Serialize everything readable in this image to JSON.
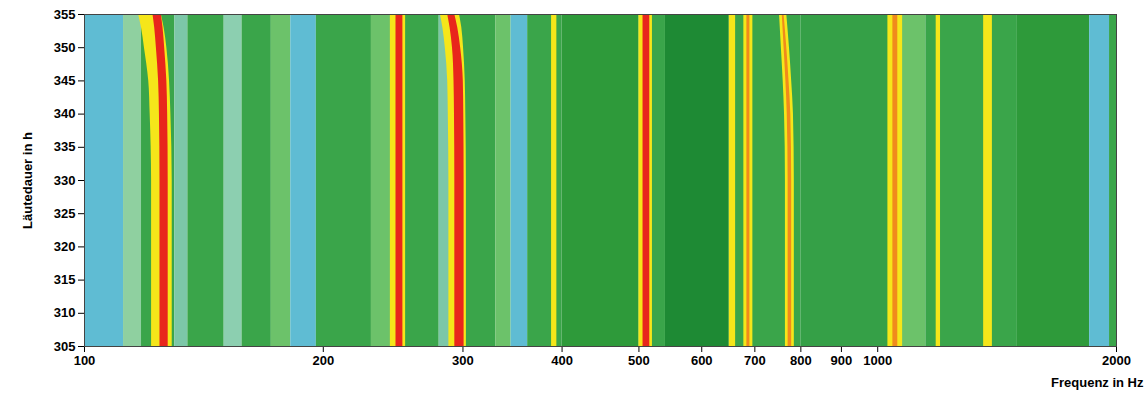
{
  "chart_data": {
    "type": "heatmap",
    "x_label": "Frequenz in Hz",
    "y_label": "Läutedauer in h",
    "log": "x",
    "xlim": [
      100,
      2000
    ],
    "xticks": [
      100,
      200,
      300,
      400,
      500,
      600,
      700,
      800,
      900,
      1000,
      2000
    ],
    "ylim": [
      305,
      355
    ],
    "yticks": [
      305,
      310,
      315,
      320,
      325,
      330,
      335,
      340,
      345,
      350,
      355
    ],
    "bands": [
      {
        "f0": 100,
        "f1": 112,
        "color": "#5fbcd3"
      },
      {
        "f0": 112,
        "f1": 118,
        "color": "#8fd0a0"
      },
      {
        "f0": 118,
        "f1": 130,
        "color": "#3aa54a"
      },
      {
        "f0": 130,
        "f1": 135,
        "color": "#7cc7a8"
      },
      {
        "f0": 135,
        "f1": 150,
        "color": "#3aa54a"
      },
      {
        "f0": 150,
        "f1": 158,
        "color": "#8ccfb0"
      },
      {
        "f0": 158,
        "f1": 172,
        "color": "#3aa54a"
      },
      {
        "f0": 172,
        "f1": 182,
        "color": "#6cc26a"
      },
      {
        "f0": 182,
        "f1": 196,
        "color": "#5fbcd3"
      },
      {
        "f0": 196,
        "f1": 230,
        "color": "#3aa54a"
      },
      {
        "f0": 230,
        "f1": 245,
        "color": "#6cc26a"
      },
      {
        "f0": 245,
        "f1": 280,
        "color": "#3aa54a"
      },
      {
        "f0": 280,
        "f1": 290,
        "color": "#7cc7a8"
      },
      {
        "f0": 290,
        "f1": 330,
        "color": "#3aa54a"
      },
      {
        "f0": 330,
        "f1": 345,
        "color": "#6cc26a"
      },
      {
        "f0": 345,
        "f1": 362,
        "color": "#5fbcd3"
      },
      {
        "f0": 362,
        "f1": 400,
        "color": "#3aa54a"
      },
      {
        "f0": 400,
        "f1": 500,
        "color": "#2e9a3a"
      },
      {
        "f0": 500,
        "f1": 540,
        "color": "#3aa54a"
      },
      {
        "f0": 540,
        "f1": 650,
        "color": "#1e8a34"
      },
      {
        "f0": 650,
        "f1": 800,
        "color": "#3aa54a"
      },
      {
        "f0": 800,
        "f1": 1050,
        "color": "#35a047"
      },
      {
        "f0": 1050,
        "f1": 1150,
        "color": "#6cc26a"
      },
      {
        "f0": 1150,
        "f1": 1500,
        "color": "#3aa54a"
      },
      {
        "f0": 1500,
        "f1": 1850,
        "color": "#2e9a3a"
      },
      {
        "f0": 1850,
        "f1": 1960,
        "color": "#5fbcd3"
      },
      {
        "f0": 1960,
        "f1": 2000,
        "color": "#3aa54a"
      }
    ],
    "peaks": [
      {
        "color": "#f5e61a",
        "t": [
          305,
          330,
          340,
          345,
          350,
          353,
          355
        ],
        "f_lo": [
          121.5,
          121.5,
          121,
          120.5,
          119,
          118,
          117
        ],
        "f_hi": [
          129,
          129,
          128.5,
          128,
          127,
          126,
          125
        ]
      },
      {
        "color": "#e8261c",
        "t": [
          305,
          330,
          340,
          345,
          350,
          353,
          355
        ],
        "f_lo": [
          124.5,
          124.5,
          124.3,
          124,
          123.2,
          122.6,
          122
        ],
        "f_hi": [
          127.5,
          127.5,
          127.3,
          127,
          126.2,
          125.6,
          125
        ]
      },
      {
        "color": "#f5e61a",
        "t": [
          305,
          355
        ],
        "f_lo": [
          243,
          243
        ],
        "f_hi": [
          254,
          254
        ]
      },
      {
        "color": "#e8261c",
        "t": [
          305,
          355
        ],
        "f_lo": [
          247,
          247
        ],
        "f_hi": [
          252,
          252
        ]
      },
      {
        "color": "#f5e61a",
        "t": [
          305,
          330,
          340,
          345,
          350,
          353,
          355
        ],
        "f_lo": [
          288,
          288,
          287.5,
          287,
          285,
          283,
          281
        ],
        "f_hi": [
          303,
          303,
          302.5,
          302,
          300.5,
          299,
          297
        ]
      },
      {
        "color": "#e8261c",
        "t": [
          305,
          330,
          340,
          345,
          350,
          353,
          355
        ],
        "f_lo": [
          293,
          293,
          292.7,
          292.3,
          291,
          289,
          287
        ],
        "f_hi": [
          301,
          301,
          300.7,
          300.3,
          298,
          295.5,
          293
        ]
      },
      {
        "color": "#f5e61a",
        "t": [
          305,
          355
        ],
        "f_lo": [
          388,
          388
        ],
        "f_hi": [
          394,
          394
        ]
      },
      {
        "color": "#f5e61a",
        "t": [
          305,
          355
        ],
        "f_lo": [
          500,
          500
        ],
        "f_hi": [
          520,
          520
        ]
      },
      {
        "color": "#e8261c",
        "t": [
          305,
          355
        ],
        "f_lo": [
          506,
          506
        ],
        "f_hi": [
          516,
          516
        ]
      },
      {
        "color": "#f5e61a",
        "t": [
          305,
          355
        ],
        "f_lo": [
          650,
          650
        ],
        "f_hi": [
          662,
          662
        ]
      },
      {
        "color": "#f5e61a",
        "t": [
          305,
          355
        ],
        "f_lo": [
          678,
          678
        ],
        "f_hi": [
          696,
          696
        ]
      },
      {
        "color": "#f08a1c",
        "t": [
          305,
          355
        ],
        "f_lo": [
          684,
          684
        ],
        "f_hi": [
          690,
          690
        ]
      },
      {
        "color": "#f5e61a",
        "t": [
          305,
          330,
          340,
          345,
          350,
          355
        ],
        "f_lo": [
          765,
          765,
          763,
          760,
          756,
          752
        ],
        "f_hi": [
          785,
          785,
          783,
          779,
          774,
          768
        ]
      },
      {
        "color": "#f08a1c",
        "t": [
          305,
          330,
          340,
          345,
          350,
          355
        ],
        "f_lo": [
          771,
          771,
          769,
          766,
          762,
          758
        ],
        "f_hi": [
          779,
          779,
          777,
          773,
          768,
          762
        ]
      },
      {
        "color": "#f5e61a",
        "t": [
          305,
          355
        ],
        "f_lo": [
          1030,
          1030
        ],
        "f_hi": [
          1075,
          1075
        ]
      },
      {
        "color": "#f08a1c",
        "t": [
          305,
          355
        ],
        "f_lo": [
          1045,
          1045
        ],
        "f_hi": [
          1060,
          1060
        ]
      },
      {
        "color": "#f5e61a",
        "t": [
          305,
          355
        ],
        "f_lo": [
          1185,
          1185
        ],
        "f_hi": [
          1200,
          1200
        ]
      },
      {
        "color": "#f5e61a",
        "t": [
          305,
          355
        ],
        "f_lo": [
          1360,
          1360
        ],
        "f_hi": [
          1395,
          1395
        ]
      }
    ]
  }
}
